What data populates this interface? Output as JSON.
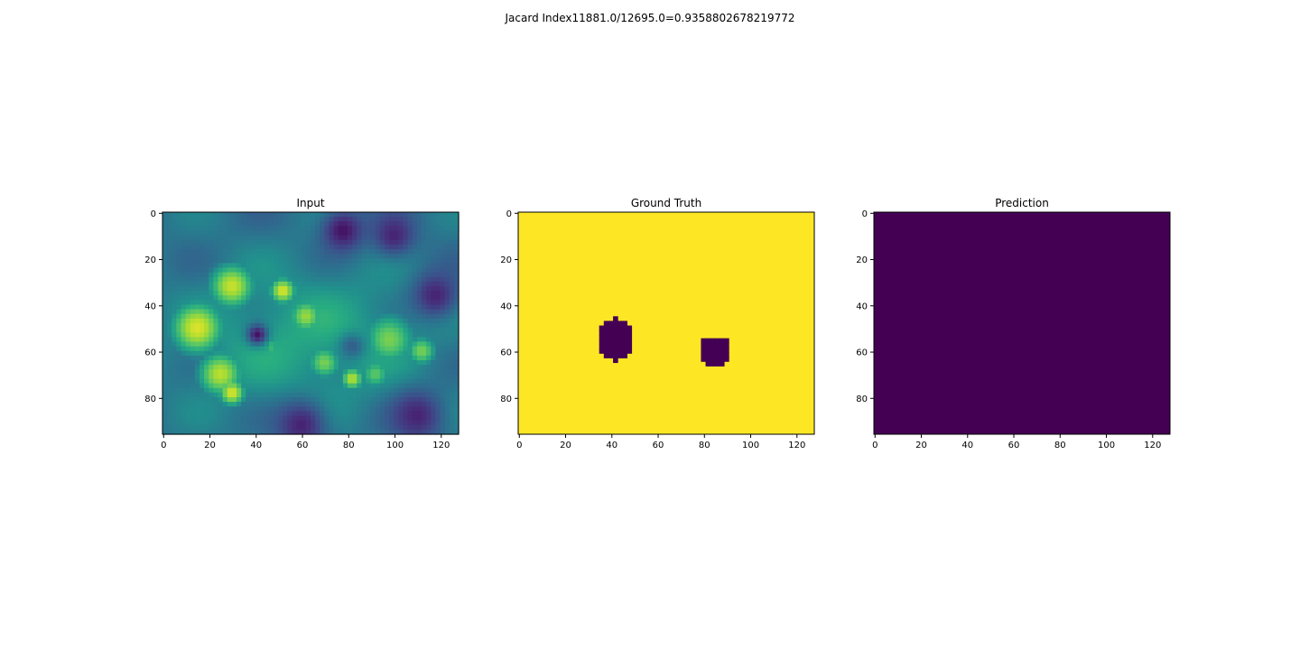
{
  "figure": {
    "suptitle": "Jacard Index11881.0/12695.0=0.9358802678219772"
  },
  "chart_data": [
    {
      "type": "heatmap",
      "title": "Input",
      "xlim": [
        0,
        128
      ],
      "ylim": [
        96,
        0
      ],
      "xticks": [
        0,
        20,
        40,
        60,
        80,
        100,
        120
      ],
      "yticks": [
        0,
        20,
        40,
        60,
        80
      ],
      "colormap": "viridis",
      "description_values": {
        "bright_blobs": [
          {
            "x": 15,
            "y": 50,
            "r": 14,
            "v": 0.95
          },
          {
            "x": 30,
            "y": 32,
            "r": 12,
            "v": 0.92
          },
          {
            "x": 52,
            "y": 34,
            "r": 7,
            "v": 0.95
          },
          {
            "x": 25,
            "y": 70,
            "r": 12,
            "v": 0.9
          },
          {
            "x": 30,
            "y": 78,
            "r": 7,
            "v": 0.95
          },
          {
            "x": 62,
            "y": 45,
            "r": 9,
            "v": 0.85
          },
          {
            "x": 70,
            "y": 65,
            "r": 9,
            "v": 0.8
          },
          {
            "x": 82,
            "y": 72,
            "r": 6,
            "v": 0.9
          },
          {
            "x": 98,
            "y": 55,
            "r": 14,
            "v": 0.8
          },
          {
            "x": 112,
            "y": 60,
            "r": 8,
            "v": 0.8
          },
          {
            "x": 92,
            "y": 70,
            "r": 8,
            "v": 0.75
          },
          {
            "x": 47,
            "y": 58,
            "r": 6,
            "v": 0.7
          }
        ],
        "dark_spots": [
          {
            "x": 41,
            "y": 53,
            "r": 4,
            "v": 0.05
          },
          {
            "x": 82,
            "y": 58,
            "r": 5,
            "v": 0.3
          },
          {
            "x": 78,
            "y": 8,
            "r": 8,
            "v": 0.05
          },
          {
            "x": 100,
            "y": 10,
            "r": 8,
            "v": 0.1
          },
          {
            "x": 118,
            "y": 36,
            "r": 9,
            "v": 0.1
          },
          {
            "x": 60,
            "y": 92,
            "r": 10,
            "v": 0.1
          },
          {
            "x": 110,
            "y": 88,
            "r": 10,
            "v": 0.1
          }
        ]
      }
    },
    {
      "type": "heatmap",
      "title": "Ground Truth",
      "xlim": [
        0,
        128
      ],
      "ylim": [
        96,
        0
      ],
      "xticks": [
        0,
        20,
        40,
        60,
        80,
        100,
        120
      ],
      "yticks": [
        0,
        20,
        40,
        60,
        80
      ],
      "background_color": "#fde725",
      "region_color": "#440154",
      "regions": [
        {
          "cx": 41,
          "cy": 54,
          "rx": 8,
          "ry": 9
        },
        {
          "cx": 84,
          "cy": 59,
          "rx": 7,
          "ry": 6.5
        }
      ]
    },
    {
      "type": "heatmap",
      "title": "Prediction",
      "xlim": [
        0,
        128
      ],
      "ylim": [
        96,
        0
      ],
      "xticks": [
        0,
        20,
        40,
        60,
        80,
        100,
        120
      ],
      "yticks": [
        0,
        20,
        40,
        60,
        80
      ],
      "fill_color": "#440154"
    }
  ]
}
